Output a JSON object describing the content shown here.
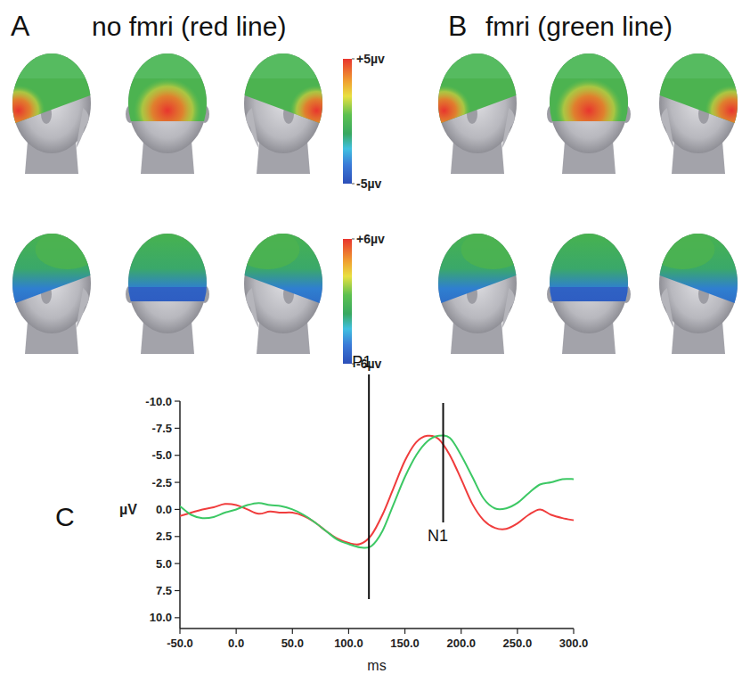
{
  "figure": {
    "panels": [
      {
        "letter": "A",
        "title": "no fmri (red line)"
      },
      {
        "letter": "B",
        "title": "fmri (green line)"
      },
      {
        "letter": "C"
      }
    ],
    "colorbars": [
      {
        "range": [
          -5,
          5
        ],
        "ticks": [
          {
            "value": -5,
            "label": "-5µv"
          },
          {
            "value": 5,
            "label": "+5µv"
          }
        ]
      },
      {
        "range": [
          -6,
          6
        ],
        "ticks": [
          {
            "value": -6,
            "label": "-6µv"
          },
          {
            "value": 6,
            "label": "+6µv"
          }
        ]
      }
    ]
  },
  "chart_data": {
    "type": "line",
    "x_label": "ms",
    "y_label": "µV",
    "x": [
      -50,
      -40,
      -30,
      -20,
      -10,
      0,
      10,
      20,
      30,
      40,
      50,
      60,
      70,
      80,
      90,
      100,
      110,
      120,
      130,
      140,
      150,
      160,
      170,
      180,
      190,
      200,
      210,
      220,
      230,
      240,
      250,
      260,
      270,
      280,
      290,
      300
    ],
    "series": [
      {
        "color": "#f03c3c",
        "values": [
          0.6,
          0.3,
          0.0,
          -0.2,
          -0.5,
          -0.4,
          0.0,
          0.4,
          0.2,
          0.3,
          0.3,
          0.6,
          1.2,
          2.0,
          2.7,
          3.1,
          3.2,
          2.4,
          0.5,
          -2.0,
          -4.5,
          -6.2,
          -6.8,
          -6.5,
          -5.0,
          -2.8,
          -0.5,
          1.0,
          1.7,
          1.8,
          1.3,
          0.5,
          0.0,
          0.5,
          0.8,
          1.0
        ]
      },
      {
        "color": "#3cc864",
        "values": [
          -0.3,
          0.5,
          0.8,
          0.7,
          0.3,
          0.0,
          -0.4,
          -0.6,
          -0.4,
          -0.3,
          0.0,
          0.5,
          1.2,
          2.0,
          2.8,
          3.2,
          3.5,
          3.4,
          2.0,
          -0.5,
          -3.0,
          -5.0,
          -6.3,
          -6.8,
          -6.6,
          -5.0,
          -3.0,
          -1.0,
          -0.1,
          -0.1,
          -0.6,
          -1.5,
          -2.3,
          -2.5,
          -2.8,
          -2.8
        ]
      }
    ],
    "xlim": [
      -50,
      300
    ],
    "xticks": [
      {
        "value": -50,
        "label": "-50.0"
      },
      {
        "value": 0,
        "label": "0.0"
      },
      {
        "value": 50,
        "label": "50.0"
      },
      {
        "value": 100,
        "label": "100.0"
      },
      {
        "value": 150,
        "label": "150.0"
      },
      {
        "value": 200,
        "label": "200.0"
      },
      {
        "value": 250,
        "label": "250.0"
      },
      {
        "value": 300,
        "label": "300.0"
      }
    ],
    "ylim": [
      11,
      -10
    ],
    "yticks": [
      {
        "value": -10,
        "label": "-10.0"
      },
      -7.5,
      {
        "value": -5,
        "label": "-5.0"
      },
      -2.5,
      {
        "value": 0,
        "label": "0.0"
      },
      2.5,
      {
        "value": 5,
        "label": "5.0"
      },
      7.5,
      {
        "value": 10,
        "label": "10.0"
      }
    ],
    "annotations": [
      {
        "text": "P1",
        "x": 118
      },
      {
        "text": "N1",
        "x": 184
      }
    ],
    "grid": false
  }
}
